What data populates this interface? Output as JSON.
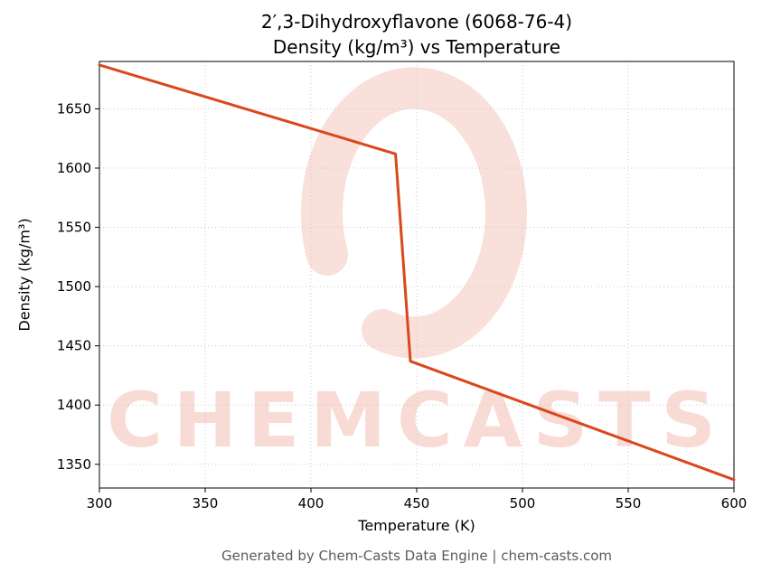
{
  "title": {
    "line1": "2′,3-Dihydroxyflavone (6068-76-4)",
    "line2": "Density (kg/m³) vs Temperature"
  },
  "footer": "Generated by Chem-Casts Data Engine | chem-casts.com",
  "watermark": {
    "text": "CHEMCASTS",
    "color": "#dd4a26"
  },
  "chart_data": {
    "type": "line",
    "title": "2′,3-Dihydroxyflavone (6068-76-4) Density (kg/m³) vs Temperature",
    "xlabel": "Temperature (K)",
    "ylabel": "Density (kg/m³)",
    "xlim": [
      300,
      600
    ],
    "ylim": [
      1330,
      1690
    ],
    "x_ticks": [
      300,
      350,
      400,
      450,
      500,
      550,
      600
    ],
    "y_ticks": [
      1350,
      1400,
      1450,
      1500,
      1550,
      1600,
      1650
    ],
    "grid": true,
    "legend": "none",
    "series": [
      {
        "name": "Density",
        "color": "#d9481c",
        "points": [
          [
            300,
            1687
          ],
          [
            440,
            1612
          ],
          [
            447,
            1437
          ],
          [
            600,
            1337
          ]
        ]
      }
    ]
  }
}
